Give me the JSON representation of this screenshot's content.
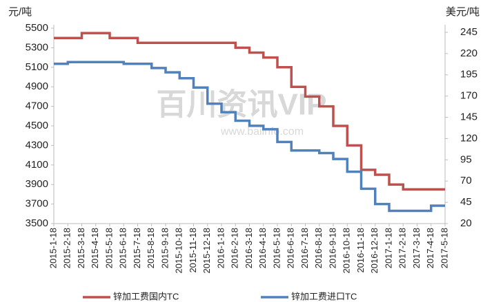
{
  "chart_data": {
    "type": "step-line",
    "y_label": "元/吨",
    "y2_label": "美元/吨",
    "watermark": "百川资讯VIP",
    "watermark_url": "www.baiinfo.com",
    "categories": [
      "2015-1-18",
      "2015-2-18",
      "2015-3-18",
      "2015-4-18",
      "2015-5-18",
      "2015-6-18",
      "2015-7-18",
      "2015-8-18",
      "2015-9-18",
      "2015-10-18",
      "2015-11-18",
      "2015-12-18",
      "2016-1-18",
      "2016-2-18",
      "2016-3-18",
      "2016-4-18",
      "2016-5-18",
      "2016-6-18",
      "2016-7-18",
      "2016-8-18",
      "2016-9-18",
      "2016-10-18",
      "2016-11-18",
      "2016-12-18",
      "2017-1-18",
      "2017-2-18",
      "2017-3-18",
      "2017-4-18",
      "2017-5-18"
    ],
    "series": [
      {
        "name": "锌加工费国内TC",
        "color": "#c0504d",
        "axis": "y",
        "values": [
          5400,
          5400,
          5450,
          5450,
          5400,
          5400,
          5350,
          5350,
          5350,
          5350,
          5350,
          5350,
          5350,
          5300,
          5250,
          5200,
          5100,
          4900,
          4800,
          4700,
          4500,
          4300,
          4050,
          4000,
          3900,
          3850,
          3850,
          3850,
          3850
        ]
      },
      {
        "name": "锌加工费进口TC",
        "color": "#4f81bd",
        "axis": "y2",
        "values": [
          208,
          210,
          210,
          210,
          210,
          208,
          208,
          203,
          198,
          191,
          180,
          161,
          151,
          141,
          135,
          131,
          116,
          106,
          106,
          103,
          96,
          81,
          61,
          43,
          35,
          35,
          35,
          41,
          41
        ]
      }
    ],
    "ylim": [
      3500,
      5500
    ],
    "yticks": [
      3500,
      3700,
      3900,
      4100,
      4300,
      4500,
      4700,
      4900,
      5100,
      5300,
      5500
    ],
    "y2lim": [
      20,
      245
    ],
    "y2ticks": [
      20,
      45,
      70,
      95,
      120,
      145,
      170,
      195,
      220,
      245
    ],
    "grid": false,
    "legend": "bottom"
  }
}
